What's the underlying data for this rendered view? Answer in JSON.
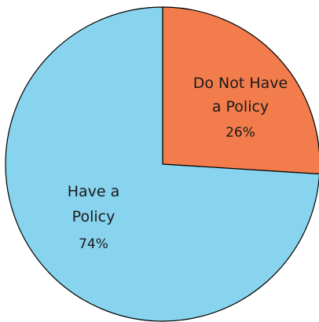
{
  "chart_data": {
    "type": "pie",
    "title": "",
    "start_angle_deg": 0,
    "direction": "clockwise",
    "slices": [
      {
        "label_lines": [
          "Do Not Have",
          "a Policy"
        ],
        "value": 26,
        "value_label": "26%",
        "color": "#F27C4C"
      },
      {
        "label_lines": [
          "Have a",
          "Policy"
        ],
        "value": 74,
        "value_label": "74%",
        "color": "#88D3EE"
      }
    ]
  }
}
